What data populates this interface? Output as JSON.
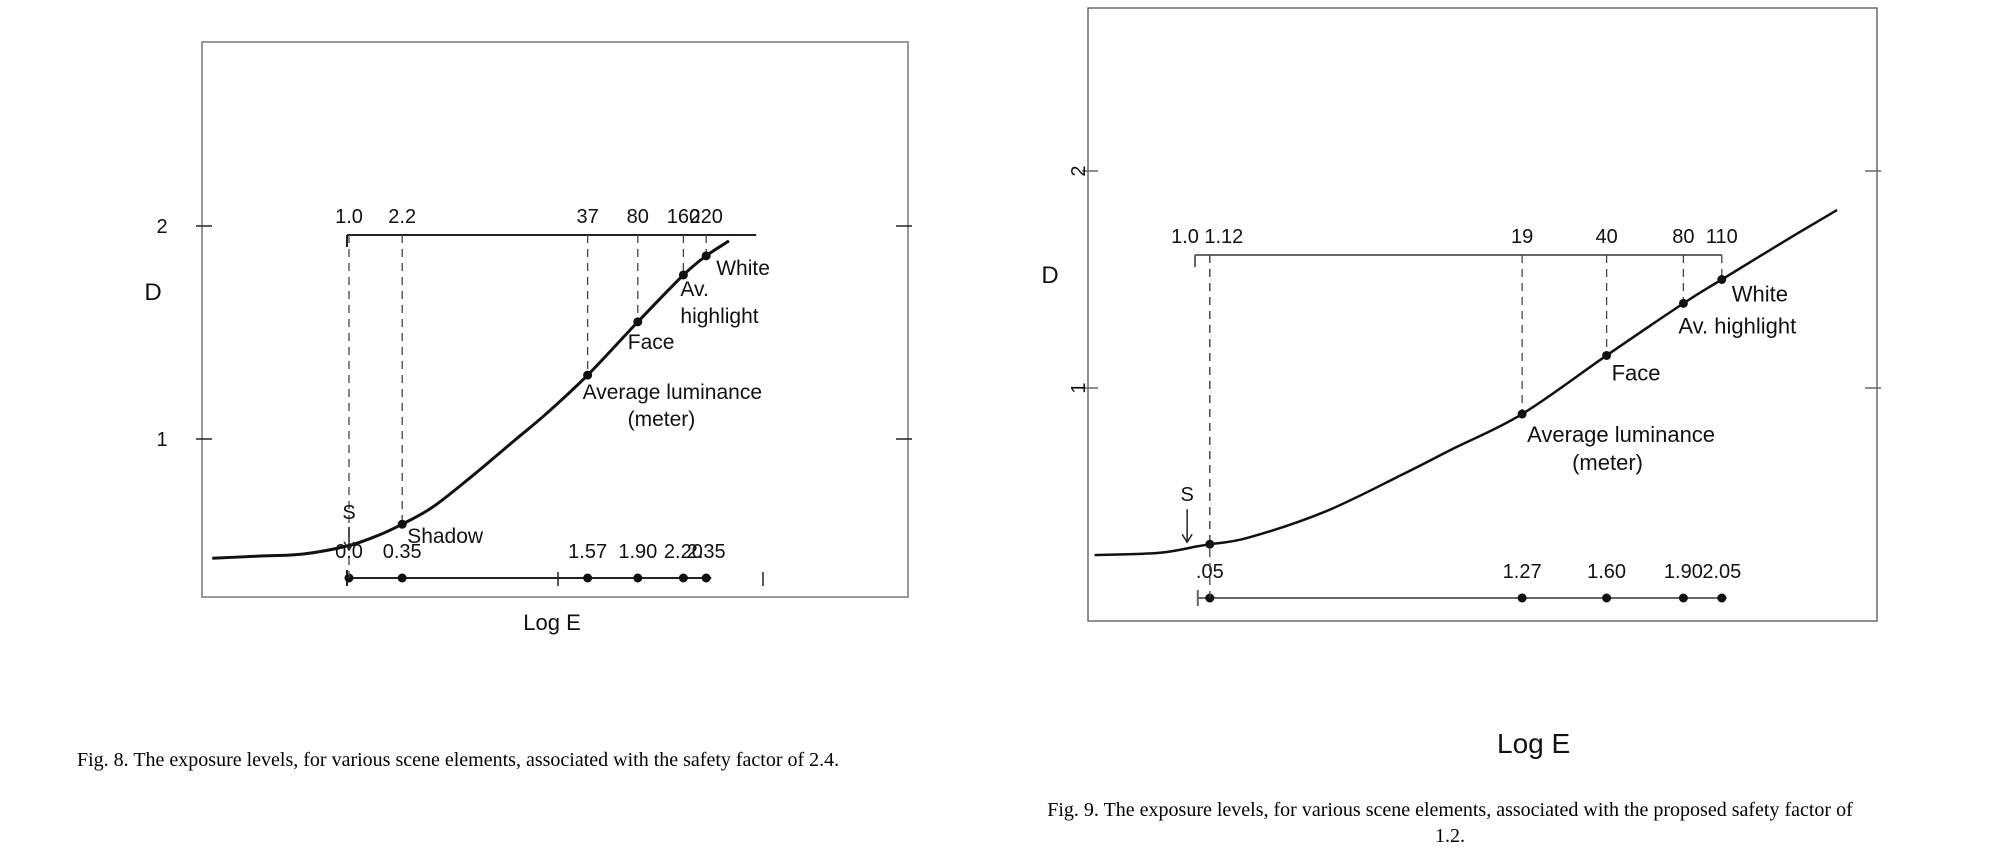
{
  "figures": [
    {
      "caption": "Fig. 8. The exposure levels, for various scene elements, associated with the safety factor of 2.4."
    },
    {
      "caption": "Fig. 9. The exposure levels, for various scene elements, associated with the proposed safety factor of 1.2."
    }
  ],
  "chart_data": [
    {
      "type": "line",
      "title": "",
      "xlabel": "Log E",
      "ylabel": "D",
      "y_ticks": [
        "1",
        "2"
      ],
      "ylim": [
        0,
        2.6
      ],
      "xlim": [
        -0.9,
        2.7
      ],
      "grid": false,
      "curve": {
        "x": [
          -0.9,
          -0.6,
          -0.3,
          0.0,
          0.2,
          0.35,
          0.55,
          0.8,
          1.1,
          1.3,
          1.57,
          1.9,
          2.2,
          2.35,
          2.5
        ],
        "y": [
          0.44,
          0.45,
          0.46,
          0.5,
          0.55,
          0.6,
          0.68,
          0.82,
          1.0,
          1.12,
          1.3,
          1.55,
          1.77,
          1.86,
          1.93
        ]
      },
      "top_scale": {
        "labels": [
          "1.0",
          "2.2",
          "37",
          "80",
          "160",
          "220"
        ],
        "x": [
          0.0,
          0.35,
          1.57,
          1.9,
          2.2,
          2.35
        ]
      },
      "bottom_scale": {
        "labels": [
          "0.0",
          "0.35",
          "1.57",
          "1.90",
          "2.20",
          "2.35"
        ],
        "x": [
          0.0,
          0.35,
          1.57,
          1.9,
          2.2,
          2.35
        ]
      },
      "points": [
        {
          "label": "Shadow",
          "x": 0.35,
          "y": 0.6
        },
        {
          "label": "Average luminance",
          "sublabel": "(meter)",
          "x": 1.57,
          "y": 1.3
        },
        {
          "label": "Face",
          "x": 1.9,
          "y": 1.55
        },
        {
          "label": "Av.",
          "sublabel": "highlight",
          "x": 2.2,
          "y": 1.77
        },
        {
          "label": "White",
          "x": 2.35,
          "y": 1.86
        }
      ],
      "annotation": "S"
    },
    {
      "type": "line",
      "title": "",
      "xlabel": "Log E",
      "ylabel": "D",
      "y_ticks": [
        "1",
        "2"
      ],
      "ylim": [
        0,
        2.6
      ],
      "xlim": [
        -0.4,
        2.7
      ],
      "grid": false,
      "curve": {
        "x": [
          -0.4,
          -0.15,
          0.0,
          0.05,
          0.2,
          0.5,
          0.8,
          1.0,
          1.27,
          1.6,
          1.9,
          2.05,
          2.3,
          2.5
        ],
        "y": [
          0.23,
          0.24,
          0.27,
          0.28,
          0.31,
          0.43,
          0.6,
          0.72,
          0.88,
          1.15,
          1.39,
          1.5,
          1.68,
          1.82
        ]
      },
      "top_scale": {
        "labels": [
          "1.0",
          "1.12",
          "19",
          "40",
          "80",
          "110"
        ],
        "x": [
          0.0,
          0.05,
          1.27,
          1.6,
          1.9,
          2.05
        ]
      },
      "bottom_scale": {
        "labels": [
          ".05",
          "1.27",
          "1.60",
          "1.90",
          "2.05"
        ],
        "x": [
          0.05,
          1.27,
          1.6,
          1.9,
          2.05
        ]
      },
      "points": [
        {
          "label": "",
          "x": 0.05,
          "y": 0.28
        },
        {
          "label": "Average luminance",
          "sublabel": "(meter)",
          "x": 1.27,
          "y": 0.88
        },
        {
          "label": "Face",
          "x": 1.6,
          "y": 1.15
        },
        {
          "label": "Av. highlight",
          "sublabel": "",
          "x": 1.9,
          "y": 1.39
        },
        {
          "label": "White",
          "x": 2.05,
          "y": 1.5
        }
      ],
      "annotation": "S"
    }
  ]
}
